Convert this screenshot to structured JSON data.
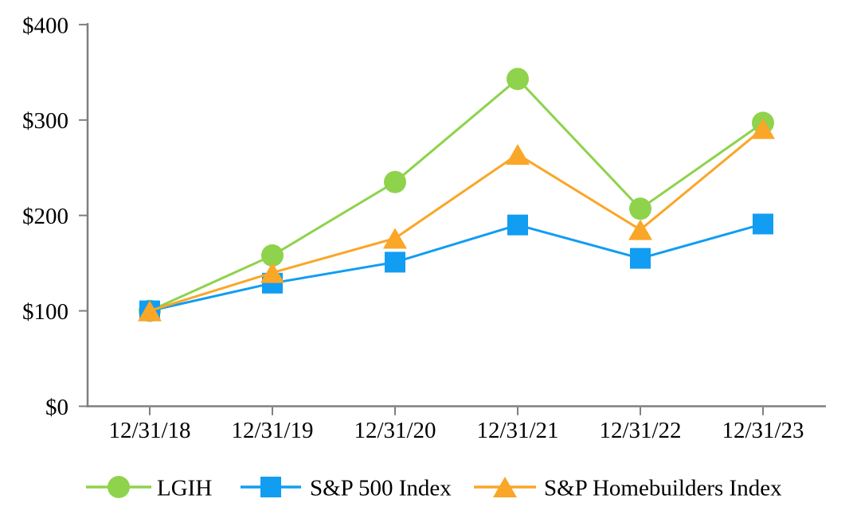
{
  "chart_data": {
    "type": "line",
    "title": "",
    "xlabel": "",
    "ylabel": "",
    "x_categories": [
      "12/31/18",
      "12/31/19",
      "12/31/20",
      "12/31/21",
      "12/31/22",
      "12/31/23"
    ],
    "y_tick_labels": [
      "$0",
      "$100",
      "$200",
      "$300",
      "$400"
    ],
    "y_tick_values": [
      0,
      100,
      200,
      300,
      400
    ],
    "ylim": [
      0,
      400
    ],
    "grid": false,
    "legend_position": "bottom",
    "series": [
      {
        "name": "LGIH",
        "marker": "circle",
        "color": "#8FD24C",
        "values": [
          100,
          158,
          235,
          343,
          207,
          297
        ]
      },
      {
        "name": "S&P 500 Index",
        "marker": "square",
        "color": "#119DF2",
        "values": [
          100,
          129,
          151,
          190,
          155,
          191
        ]
      },
      {
        "name": "S&P Homebuilders Index",
        "marker": "triangle",
        "color": "#FAA628",
        "values": [
          100,
          140,
          176,
          264,
          185,
          291
        ]
      }
    ],
    "colors": {
      "axis": "#7F7F7F",
      "text": "#000000",
      "background": "#FFFFFF"
    }
  }
}
